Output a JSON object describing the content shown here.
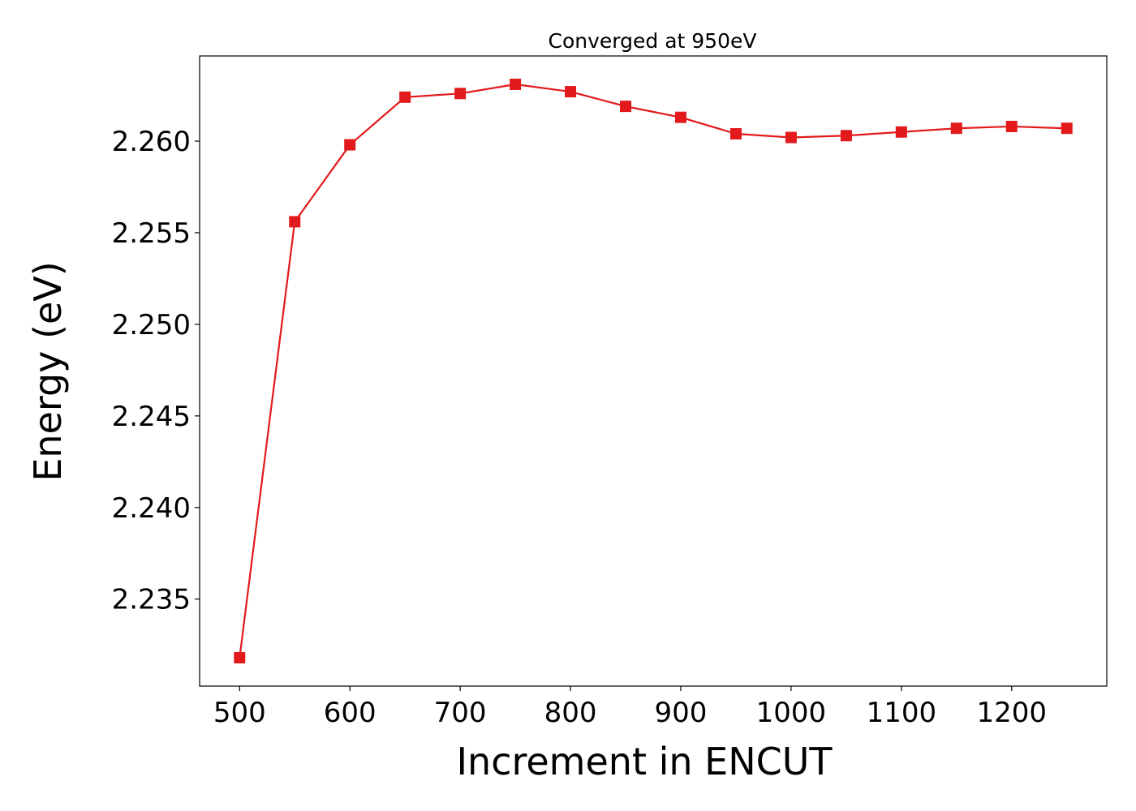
{
  "chart_data": {
    "type": "line",
    "title": "Converged at 950eV",
    "xlabel": "Increment in ENCUT",
    "ylabel": "Energy (eV)",
    "x": [
      500,
      550,
      600,
      650,
      700,
      750,
      800,
      850,
      900,
      950,
      1000,
      1050,
      1100,
      1150,
      1200,
      1250
    ],
    "series": [
      {
        "values": [
          2.2318,
          2.2556,
          2.2598,
          2.2624,
          2.2626,
          2.2631,
          2.2627,
          2.2619,
          2.2613,
          2.2604,
          2.2602,
          2.2603,
          2.2605,
          2.2607,
          2.2608,
          2.2607
        ],
        "color": "#e31a1c",
        "marker": "square"
      }
    ],
    "xticks": [
      500,
      600,
      700,
      800,
      900,
      1000,
      1100,
      1200
    ],
    "xtick_labels": [
      "500",
      "600",
      "700",
      "800",
      "900",
      "1000",
      "1100",
      "1200"
    ],
    "yticks": [
      2.235,
      2.24,
      2.245,
      2.25,
      2.255,
      2.26
    ],
    "ytick_labels": [
      "2.235",
      "2.240",
      "2.245",
      "2.250",
      "2.255",
      "2.260"
    ],
    "xlim": [
      463.75,
      1286.25
    ],
    "ylim": [
      2.23025,
      2.26465
    ],
    "grid": false,
    "legend": "none"
  }
}
